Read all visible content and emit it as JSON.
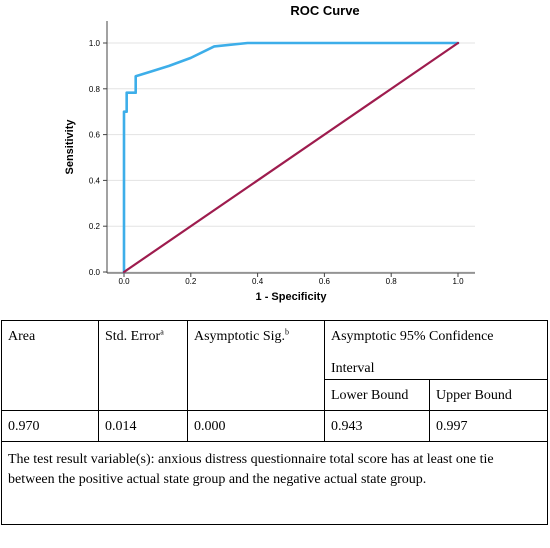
{
  "chart_data": {
    "type": "line",
    "title": "ROC Curve",
    "xlabel": "1 - Specificity",
    "ylabel": "Sensitivity",
    "xlim": [
      0,
      1
    ],
    "ylim": [
      0,
      1
    ],
    "xticks": [
      "0.0",
      "0.2",
      "0.4",
      "0.6",
      "0.8",
      "1.0"
    ],
    "yticks": [
      "0.0",
      "0.2",
      "0.4",
      "0.6",
      "0.8",
      "1.0"
    ],
    "grid": "horizontal",
    "series": [
      {
        "color": "#3daee9",
        "x": [
          0.0,
          0.0,
          0.008,
          0.008,
          0.035,
          0.035,
          0.08,
          0.135,
          0.2,
          0.27,
          0.37,
          1.0
        ],
        "y": [
          0.0,
          0.7,
          0.7,
          0.783,
          0.783,
          0.855,
          0.875,
          0.9,
          0.935,
          0.985,
          1.0,
          1.0
        ]
      },
      {
        "color": "#9e1c4e",
        "x": [
          0,
          1
        ],
        "y": [
          0,
          1
        ]
      }
    ]
  },
  "table": {
    "header": {
      "area": "Area",
      "std_error": "Std. Error",
      "std_error_sup": "a",
      "asymp_sig": "Asymptotic Sig.",
      "asymp_sig_sup": "b",
      "ci_line1": "Asymptotic 95% Confidence",
      "ci_line2": "Interval",
      "lower": "Lower Bound",
      "upper": "Upper Bound"
    },
    "row": {
      "area": "0.970",
      "std_error": "0.014",
      "asymp_sig": "0.000",
      "lower": "0.943",
      "upper": "0.997"
    },
    "footnote": "The test result variable(s): anxious distress questionnaire total score has at least one tie between the positive actual state group and the negative actual state group."
  }
}
